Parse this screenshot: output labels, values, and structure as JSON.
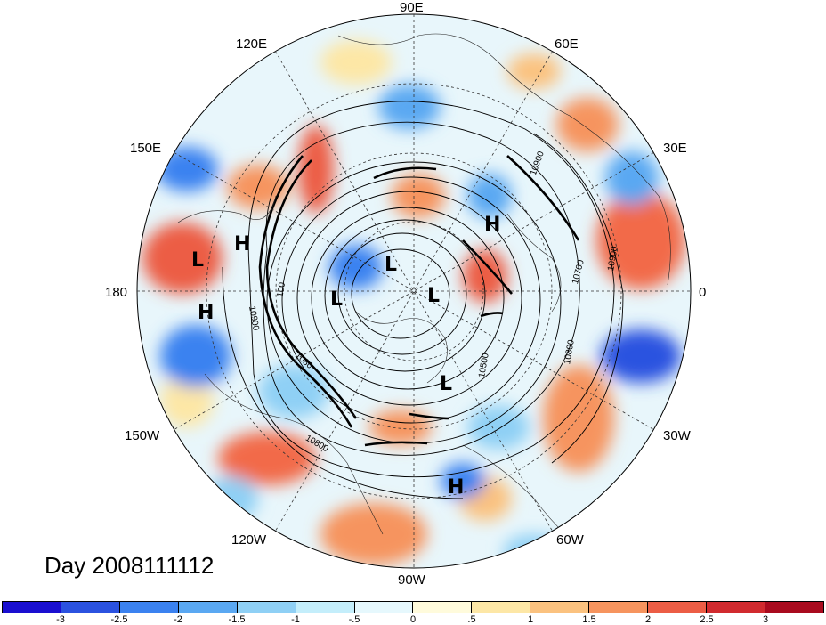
{
  "title": "Day 2008111112",
  "longitude_labels": [
    {
      "id": "lon-90e",
      "text": "90E"
    },
    {
      "id": "lon-60e",
      "text": "60E"
    },
    {
      "id": "lon-120e",
      "text": "120E"
    },
    {
      "id": "lon-30e",
      "text": "30E"
    },
    {
      "id": "lon-150e",
      "text": "150E"
    },
    {
      "id": "lon-180",
      "text": "180"
    },
    {
      "id": "lon-0",
      "text": "0"
    },
    {
      "id": "lon-150w",
      "text": "150W"
    },
    {
      "id": "lon-30w",
      "text": "30W"
    },
    {
      "id": "lon-120w",
      "text": "120W"
    },
    {
      "id": "lon-60w",
      "text": "60W"
    },
    {
      "id": "lon-90w",
      "text": "90W"
    }
  ],
  "pressure_centers": [
    {
      "id": "h-pacific-1",
      "text": "H"
    },
    {
      "id": "l-pacific",
      "text": "L"
    },
    {
      "id": "h-pacific-2",
      "text": "H"
    },
    {
      "id": "h-europe",
      "text": "H"
    },
    {
      "id": "l-arctic-1",
      "text": "L"
    },
    {
      "id": "l-arctic-2",
      "text": "L"
    },
    {
      "id": "l-arctic-3",
      "text": "L"
    },
    {
      "id": "l-canada",
      "text": "L"
    },
    {
      "id": "h-atlantic",
      "text": "H"
    }
  ],
  "contour_labels": [
    {
      "id": "c1",
      "text": "10900"
    },
    {
      "id": "c2",
      "text": "10900"
    },
    {
      "id": "c3",
      "text": "10900"
    },
    {
      "id": "c4",
      "text": "10800"
    },
    {
      "id": "c5",
      "text": "10800"
    },
    {
      "id": "c6",
      "text": "10700"
    },
    {
      "id": "c7",
      "text": "10500"
    },
    {
      "id": "c8",
      "text": "100"
    },
    {
      "id": "c9",
      "text": "1080"
    }
  ],
  "colorbar": {
    "colors": [
      "#1a0fd0",
      "#2b52e0",
      "#3b82f0",
      "#5aa8f2",
      "#8fd0f5",
      "#c4eefb",
      "#e6f8fd",
      "#fffbdc",
      "#fde7a6",
      "#fbc27f",
      "#f6945e",
      "#ec5d45",
      "#d12a2e",
      "#a90b1e"
    ],
    "ticks": [
      "-3",
      "-2.5",
      "-2",
      "-1.5",
      "-1",
      "-.5",
      "0",
      ".5",
      "1",
      "1.5",
      "2",
      "2.5",
      "3"
    ]
  }
}
